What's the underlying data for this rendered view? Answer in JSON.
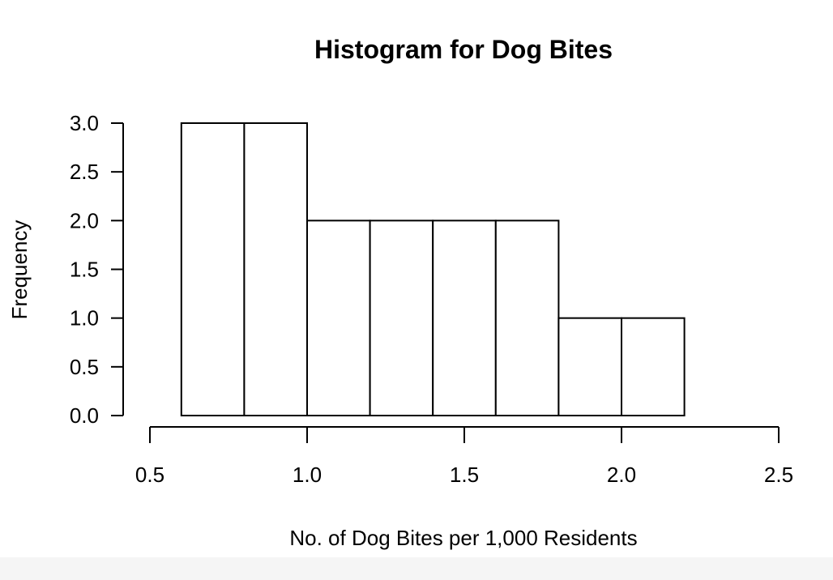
{
  "chart_data": {
    "type": "bar",
    "title": "Histogram for Dog Bites",
    "xlabel": "No. of Dog Bites per 1,000 Residents",
    "ylabel": "Frequency",
    "bins": [
      {
        "start": 0.6,
        "end": 0.8,
        "count": 3
      },
      {
        "start": 0.8,
        "end": 1.0,
        "count": 3
      },
      {
        "start": 1.0,
        "end": 1.2,
        "count": 2
      },
      {
        "start": 1.2,
        "end": 1.4,
        "count": 2
      },
      {
        "start": 1.4,
        "end": 1.6,
        "count": 2
      },
      {
        "start": 1.6,
        "end": 1.8,
        "count": 2
      },
      {
        "start": 1.8,
        "end": 2.0,
        "count": 1
      },
      {
        "start": 2.0,
        "end": 2.2,
        "count": 1
      }
    ],
    "xlim": [
      0.5,
      2.5
    ],
    "ylim": [
      0,
      3
    ],
    "xticks": [
      {
        "value": 0.5,
        "label": "0.5"
      },
      {
        "value": 1.0,
        "label": "1.0"
      },
      {
        "value": 1.5,
        "label": "1.5"
      },
      {
        "value": 2.0,
        "label": "2.0"
      },
      {
        "value": 2.5,
        "label": "2.5"
      }
    ],
    "yticks": [
      {
        "value": 0.0,
        "label": "0.0"
      },
      {
        "value": 0.5,
        "label": "0.5"
      },
      {
        "value": 1.0,
        "label": "1.0"
      },
      {
        "value": 1.5,
        "label": "1.5"
      },
      {
        "value": 2.0,
        "label": "2.0"
      },
      {
        "value": 2.5,
        "label": "2.5"
      },
      {
        "value": 3.0,
        "label": "3.0"
      }
    ],
    "grid": false,
    "colors": {
      "bar_fill": "#ffffff",
      "bar_stroke": "#000000",
      "axis": "#000000",
      "text": "#000000"
    }
  }
}
